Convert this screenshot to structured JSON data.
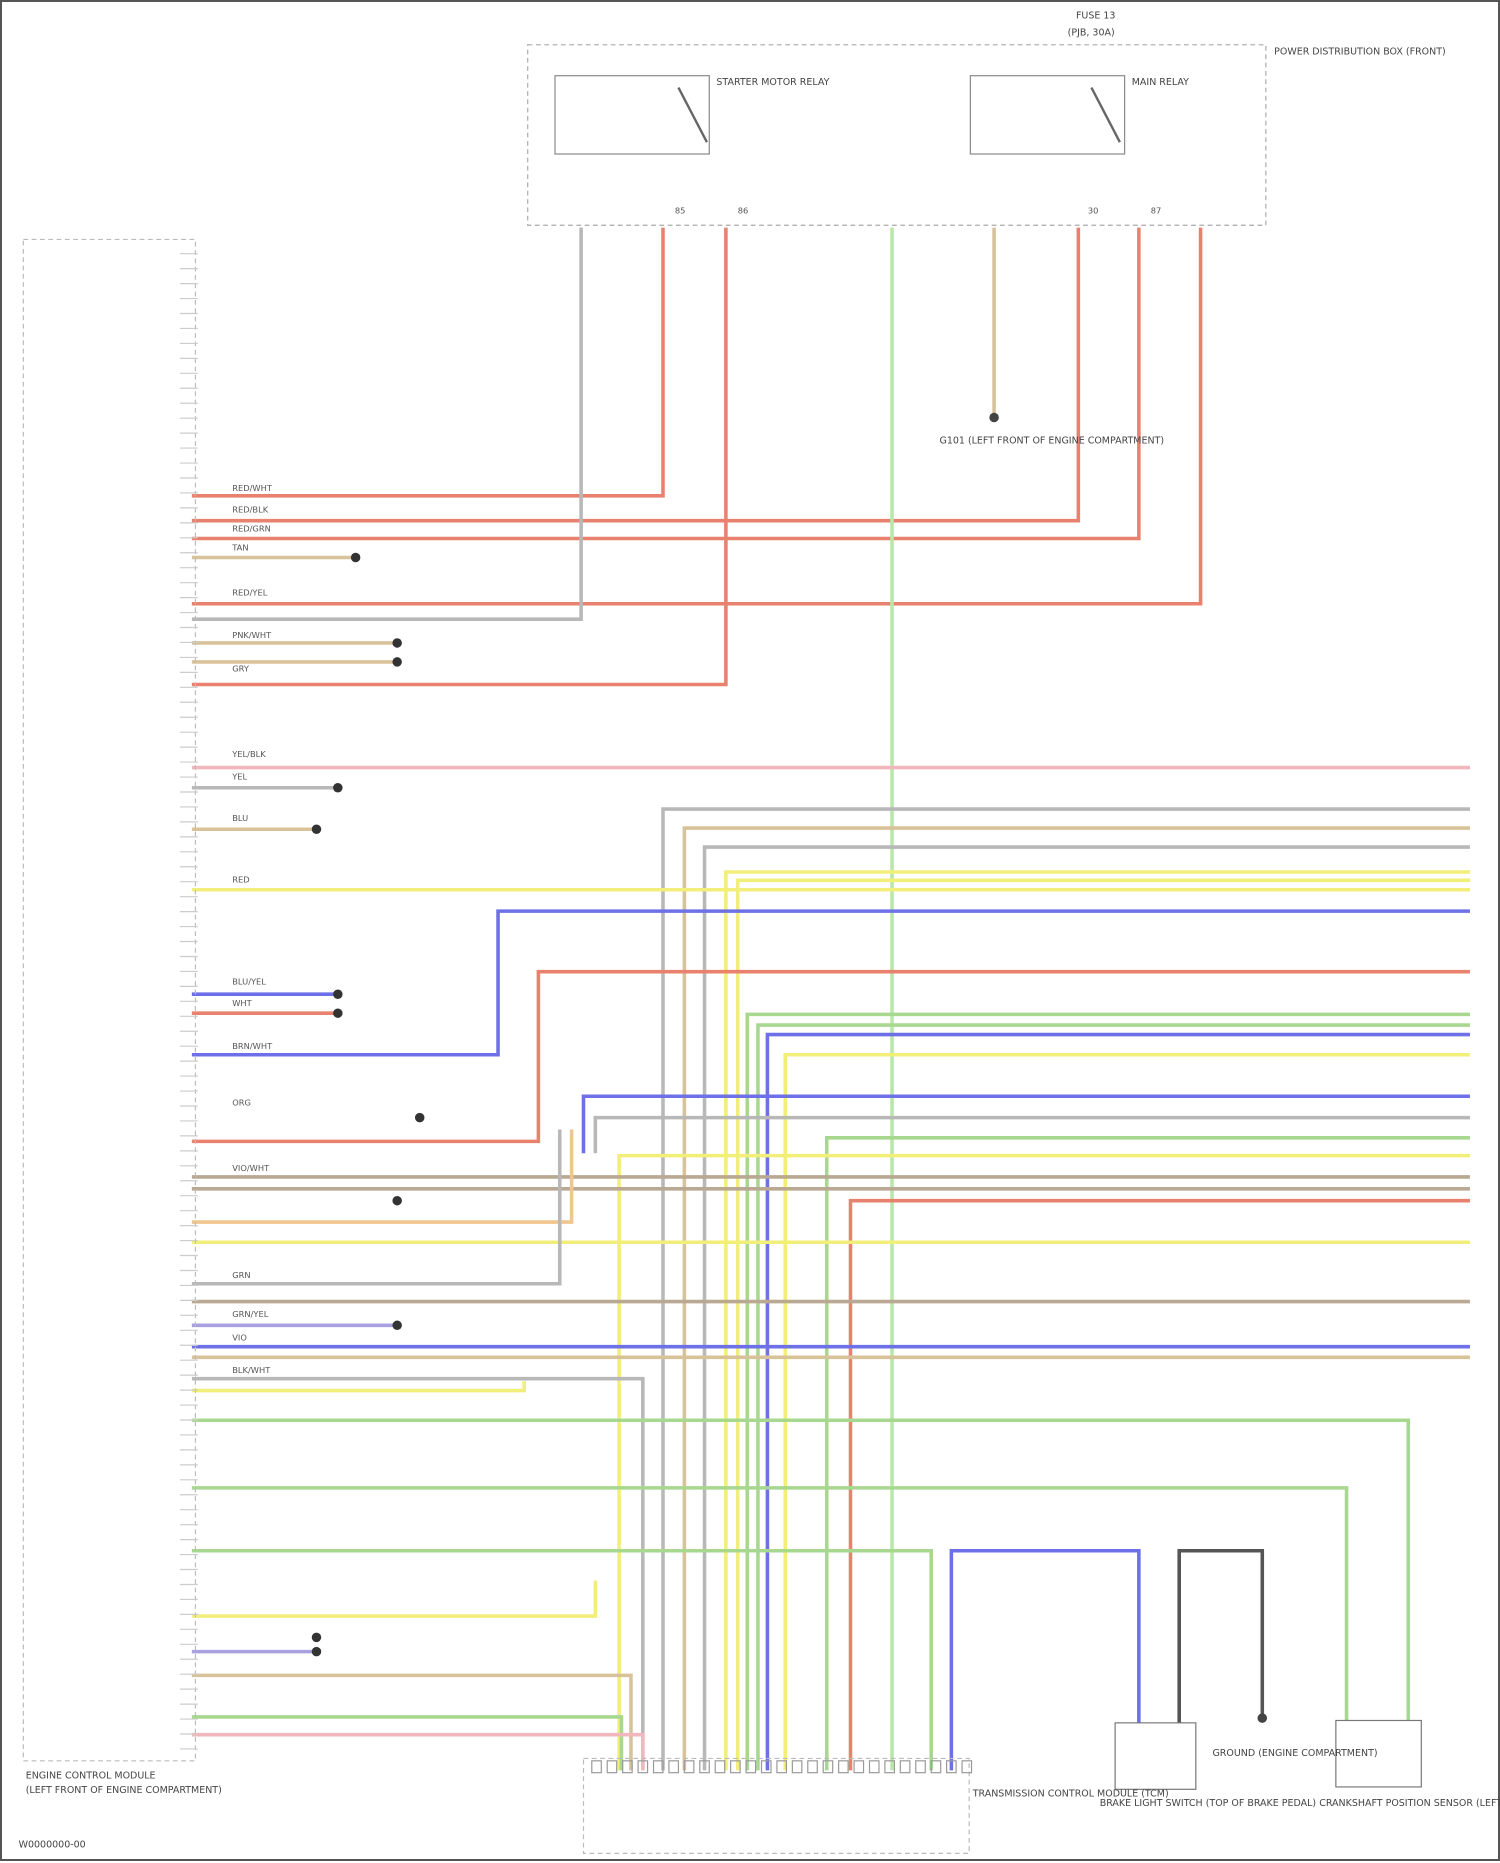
{
  "diagram": {
    "top_component": {
      "fuse_label": "FUSE 13",
      "fuse_sub": "(PJB, 30A)",
      "relay_1": "STARTER MOTOR RELAY",
      "relay_2": "MAIN RELAY",
      "module": "POWER DISTRIBUTION BOX (FRONT)",
      "pins": [
        "85",
        "86",
        "30",
        "87"
      ]
    },
    "left_module": {
      "title_line1": "ENGINE CONTROL MODULE",
      "title_line2": "(LEFT FRONT OF ENGINE COMPARTMENT)"
    },
    "bottom_module": {
      "title": "TRANSMISSION CONTROL MODULE (TCM)"
    },
    "bottom_components": [
      {
        "title": "BRAKE LIGHT SWITCH (TOP OF BRAKE PEDAL)"
      },
      {
        "title": "GROUND (ENGINE COMPARTMENT)"
      },
      {
        "title": "CRANKSHAFT POSITION SENSOR (LEFT REAR OF ENGINE)"
      }
    ],
    "ground_label": "G101 (LEFT FRONT OF ENGINE COMPARTMENT)",
    "footer_code": "W0000000-00",
    "wire_labels": [
      "RED/WHT",
      "RED/BLK",
      "RED/GRN",
      "TAN",
      "RED/YEL",
      "PNK/WHT",
      "GRY",
      "YEL/BLK",
      "YEL",
      "BLU",
      "RED",
      "BLU/YEL",
      "WHT",
      "BRN/WHT",
      "ORG",
      "VIO/WHT",
      "GRN",
      "GRN/YEL",
      "VIO",
      "BLK/WHT"
    ],
    "wire_colors": {
      "red": "#e8826e",
      "pink": "#f2b7bd",
      "tan": "#d8c29a",
      "grey": "#b8b8b8",
      "yellow": "#f2ee7a",
      "blue": "#6e70e8",
      "green": "#a8d890",
      "brown": "#b9a892",
      "orange": "#f1c58e",
      "violet": "#a8a0e0",
      "lgreen": "#b8e8a8",
      "dark": "#555555"
    }
  }
}
